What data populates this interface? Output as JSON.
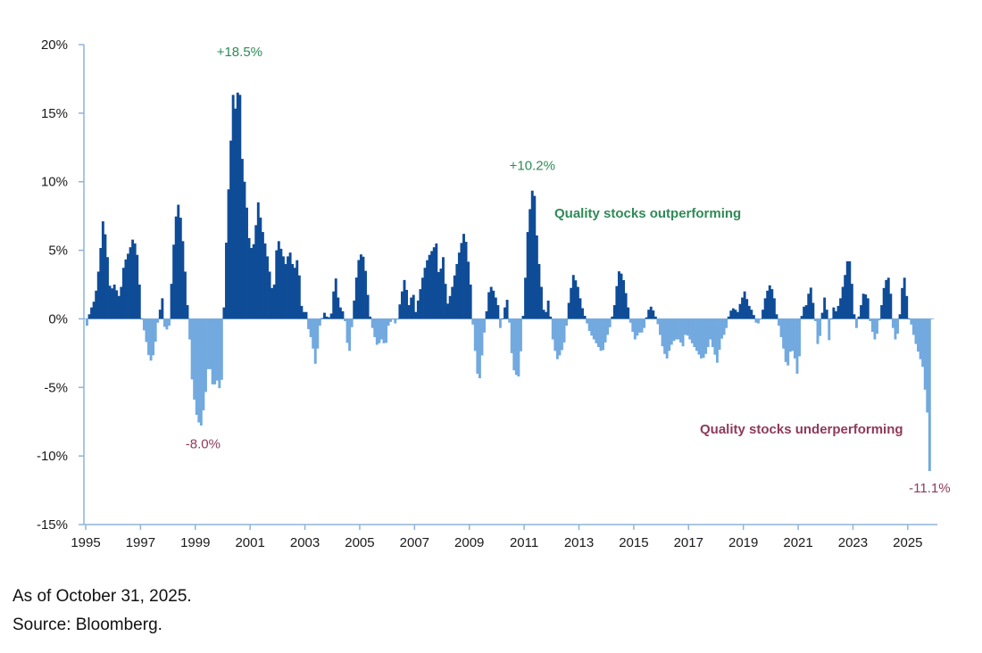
{
  "colors": {
    "positive": "#0f4c97",
    "negative": "#72a9df",
    "axis": "#8fb3d9",
    "pos_text": "#2f8a57",
    "neg_text": "#8e3a5a"
  },
  "chart_data": {
    "type": "bar",
    "title": "",
    "xlabel": "",
    "ylabel": "",
    "ylim": [
      -15,
      20
    ],
    "xlim": [
      1995,
      2025.95
    ],
    "y_ticks": [
      20,
      15,
      10,
      5,
      0,
      -5,
      -10,
      -15
    ],
    "y_tick_labels": [
      "20%",
      "15%",
      "10%",
      "5%",
      "0%",
      "-5%",
      "-10%",
      "-15%"
    ],
    "x_ticks": [
      1995,
      1997,
      1999,
      2001,
      2003,
      2005,
      2007,
      2009,
      2011,
      2013,
      2015,
      2017,
      2019,
      2021,
      2023,
      2025
    ],
    "x_tick_labels": [
      "1995",
      "1997",
      "1999",
      "2001",
      "2003",
      "2005",
      "2007",
      "2009",
      "2011",
      "2013",
      "2015",
      "2017",
      "2019",
      "2021",
      "2023",
      "2025"
    ],
    "series_start": "1995-01",
    "series_frequency": "monthly",
    "series_unit": "%",
    "keyframes": [
      [
        1995.0,
        -0.5
      ],
      [
        1995.1,
        0.5
      ],
      [
        1995.3,
        1.5
      ],
      [
        1995.45,
        4
      ],
      [
        1995.6,
        7.5
      ],
      [
        1995.75,
        4.5
      ],
      [
        1995.85,
        2
      ],
      [
        1996.0,
        2.5
      ],
      [
        1996.2,
        1.5
      ],
      [
        1996.35,
        4
      ],
      [
        1996.55,
        5
      ],
      [
        1996.7,
        6
      ],
      [
        1996.85,
        4.5
      ],
      [
        1997.0,
        0
      ],
      [
        1997.15,
        -1.5
      ],
      [
        1997.3,
        -3.2
      ],
      [
        1997.45,
        -2.5
      ],
      [
        1997.6,
        0
      ],
      [
        1997.75,
        1.5
      ],
      [
        1997.85,
        -1
      ],
      [
        1998.0,
        -0.5
      ],
      [
        1998.15,
        5
      ],
      [
        1998.3,
        8.7
      ],
      [
        1998.45,
        7
      ],
      [
        1998.6,
        3
      ],
      [
        1998.75,
        -1.5
      ],
      [
        1998.85,
        -5
      ],
      [
        1999.0,
        -7
      ],
      [
        1999.15,
        -8
      ],
      [
        1999.3,
        -6
      ],
      [
        1999.45,
        -3
      ],
      [
        1999.6,
        -5
      ],
      [
        1999.75,
        -4.5
      ],
      [
        1999.9,
        -5.5
      ],
      [
        2000.05,
        4
      ],
      [
        2000.2,
        11
      ],
      [
        2000.35,
        17
      ],
      [
        2000.45,
        14.5
      ],
      [
        2000.55,
        18.5
      ],
      [
        2000.65,
        12
      ],
      [
        2000.8,
        9
      ],
      [
        2000.95,
        5
      ],
      [
        2001.1,
        5.5
      ],
      [
        2001.25,
        8.5
      ],
      [
        2001.4,
        6.5
      ],
      [
        2001.55,
        5
      ],
      [
        2001.7,
        3
      ],
      [
        2001.8,
        1.5
      ],
      [
        2001.95,
        6
      ],
      [
        2002.1,
        5
      ],
      [
        2002.25,
        4
      ],
      [
        2002.4,
        5
      ],
      [
        2002.55,
        3.5
      ],
      [
        2002.7,
        4.5
      ],
      [
        2002.85,
        0.5
      ],
      [
        2003.0,
        0.5
      ],
      [
        2003.1,
        -1
      ],
      [
        2003.2,
        -1.5
      ],
      [
        2003.35,
        -3.5
      ],
      [
        2003.5,
        -0.5
      ],
      [
        2003.65,
        0.5
      ],
      [
        2003.8,
        0
      ],
      [
        2003.95,
        0.5
      ],
      [
        2004.05,
        3.5
      ],
      [
        2004.2,
        1
      ],
      [
        2004.35,
        0.5
      ],
      [
        2004.45,
        -0.5
      ],
      [
        2004.55,
        -3
      ],
      [
        2004.65,
        -1
      ],
      [
        2004.8,
        2.5
      ],
      [
        2004.95,
        4.8
      ],
      [
        2005.1,
        4.5
      ],
      [
        2005.2,
        3
      ],
      [
        2005.3,
        0.5
      ],
      [
        2005.45,
        -1
      ],
      [
        2005.6,
        -2
      ],
      [
        2005.75,
        -1.5
      ],
      [
        2005.9,
        -2
      ],
      [
        2006.0,
        -0.5
      ],
      [
        2006.15,
        0
      ],
      [
        2006.3,
        -0.5
      ],
      [
        2006.45,
        1.5
      ],
      [
        2006.6,
        3
      ],
      [
        2006.75,
        1
      ],
      [
        2006.9,
        2
      ],
      [
        2007.0,
        0.5
      ],
      [
        2007.15,
        2
      ],
      [
        2007.3,
        3.5
      ],
      [
        2007.45,
        4.5
      ],
      [
        2007.6,
        5
      ],
      [
        2007.75,
        5.5
      ],
      [
        2007.85,
        3
      ],
      [
        2008.0,
        4.5
      ],
      [
        2008.15,
        1
      ],
      [
        2008.3,
        2
      ],
      [
        2008.45,
        3.5
      ],
      [
        2008.6,
        5
      ],
      [
        2008.75,
        6.2
      ],
      [
        2008.85,
        5.5
      ],
      [
        2009.0,
        2.5
      ],
      [
        2009.1,
        -1
      ],
      [
        2009.2,
        -3
      ],
      [
        2009.3,
        -5
      ],
      [
        2009.45,
        -2
      ],
      [
        2009.55,
        0
      ],
      [
        2009.7,
        2.5
      ],
      [
        2009.85,
        2
      ],
      [
        2010.0,
        1
      ],
      [
        2010.1,
        -1
      ],
      [
        2010.2,
        0.5
      ],
      [
        2010.35,
        1.5
      ],
      [
        2010.5,
        -2.5
      ],
      [
        2010.6,
        -4
      ],
      [
        2010.75,
        -4.2
      ],
      [
        2010.85,
        -2
      ],
      [
        2011.0,
        3
      ],
      [
        2011.1,
        7
      ],
      [
        2011.2,
        8.5
      ],
      [
        2011.3,
        10.2
      ],
      [
        2011.4,
        6.5
      ],
      [
        2011.5,
        4
      ],
      [
        2011.6,
        2
      ],
      [
        2011.7,
        0
      ],
      [
        2011.85,
        1.5
      ],
      [
        2012.0,
        -1.5
      ],
      [
        2012.15,
        -3
      ],
      [
        2012.3,
        -2.5
      ],
      [
        2012.45,
        -1.5
      ],
      [
        2012.6,
        1.5
      ],
      [
        2012.75,
        3.2
      ],
      [
        2012.9,
        2.5
      ],
      [
        2013.05,
        1
      ],
      [
        2013.2,
        0
      ],
      [
        2013.35,
        -1
      ],
      [
        2013.5,
        -1.5
      ],
      [
        2013.65,
        -2
      ],
      [
        2013.8,
        -2.5
      ],
      [
        2013.95,
        -1.5
      ],
      [
        2014.1,
        -0.5
      ],
      [
        2014.25,
        1
      ],
      [
        2014.4,
        3.5
      ],
      [
        2014.55,
        3.2
      ],
      [
        2014.7,
        1.5
      ],
      [
        2014.85,
        -0.5
      ],
      [
        2015.0,
        -1.5
      ],
      [
        2015.15,
        -1
      ],
      [
        2015.3,
        -1
      ],
      [
        2015.4,
        0
      ],
      [
        2015.55,
        1
      ],
      [
        2015.7,
        0.5
      ],
      [
        2015.85,
        -0.5
      ],
      [
        2016.0,
        -2
      ],
      [
        2016.15,
        -3
      ],
      [
        2016.3,
        -2
      ],
      [
        2016.45,
        -1.5
      ],
      [
        2016.6,
        -1.5
      ],
      [
        2016.75,
        -2
      ],
      [
        2016.85,
        -1
      ],
      [
        2017.0,
        -1.5
      ],
      [
        2017.15,
        -2
      ],
      [
        2017.3,
        -2.5
      ],
      [
        2017.45,
        -3
      ],
      [
        2017.6,
        -2.5
      ],
      [
        2017.75,
        -1.5
      ],
      [
        2017.9,
        -2.5
      ],
      [
        2018.0,
        -3.2
      ],
      [
        2018.15,
        -1.5
      ],
      [
        2018.3,
        -1
      ],
      [
        2018.45,
        0.5
      ],
      [
        2018.6,
        0.8
      ],
      [
        2018.75,
        0.5
      ],
      [
        2018.85,
        1.2
      ],
      [
        2019.0,
        2
      ],
      [
        2019.15,
        1
      ],
      [
        2019.3,
        0.5
      ],
      [
        2019.45,
        -0.5
      ],
      [
        2019.6,
        0
      ],
      [
        2019.75,
        1.5
      ],
      [
        2019.9,
        2.5
      ],
      [
        2020.05,
        2
      ],
      [
        2020.15,
        0.5
      ],
      [
        2020.3,
        -1
      ],
      [
        2020.45,
        -2.5
      ],
      [
        2020.55,
        -3.8
      ],
      [
        2020.7,
        -2
      ],
      [
        2020.85,
        -3
      ],
      [
        2020.95,
        -4.5
      ],
      [
        2021.1,
        0.8
      ],
      [
        2021.25,
        1
      ],
      [
        2021.4,
        2.5
      ],
      [
        2021.55,
        0.5
      ],
      [
        2021.7,
        -2.5
      ],
      [
        2021.8,
        0
      ],
      [
        2021.95,
        2
      ],
      [
        2022.1,
        -2
      ],
      [
        2022.2,
        1
      ],
      [
        2022.35,
        0.5
      ],
      [
        2022.5,
        1.5
      ],
      [
        2022.65,
        3
      ],
      [
        2022.8,
        4.8
      ],
      [
        2022.9,
        3
      ],
      [
        2023.05,
        -1
      ],
      [
        2023.2,
        0.5
      ],
      [
        2023.35,
        2
      ],
      [
        2023.5,
        1.5
      ],
      [
        2023.6,
        -0.5
      ],
      [
        2023.75,
        -1.5
      ],
      [
        2023.85,
        -1
      ],
      [
        2024.0,
        1
      ],
      [
        2024.1,
        2.5
      ],
      [
        2024.2,
        3
      ],
      [
        2024.3,
        3
      ],
      [
        2024.4,
        -0.5
      ],
      [
        2024.5,
        -1.5
      ],
      [
        2024.6,
        -1
      ],
      [
        2024.7,
        1
      ],
      [
        2024.8,
        3.5
      ],
      [
        2024.9,
        2
      ],
      [
        2025.0,
        0
      ],
      [
        2025.1,
        -0.5
      ],
      [
        2025.2,
        -1.5
      ],
      [
        2025.35,
        -2.5
      ],
      [
        2025.5,
        -3.5
      ],
      [
        2025.6,
        -5.5
      ],
      [
        2025.7,
        -7.5
      ],
      [
        2025.8,
        -11.1
      ]
    ],
    "annotations": [
      {
        "id": "peak-2000",
        "label": "+18.5%",
        "x": 2000.55,
        "y": 18.5,
        "tone": "positive"
      },
      {
        "id": "peak-2011",
        "label": "+10.2%",
        "x": 2011.3,
        "y": 10.2,
        "tone": "positive"
      },
      {
        "id": "trough-1999",
        "label": "-8.0%",
        "x": 1999.15,
        "y": -8.0,
        "tone": "negative"
      },
      {
        "id": "trough-2025",
        "label": "-11.1%",
        "x": 2025.8,
        "y": -11.1,
        "tone": "negative"
      }
    ],
    "callouts": [
      {
        "id": "outperforming",
        "label": "Quality stocks outperforming",
        "tone": "positive"
      },
      {
        "id": "underperforming",
        "label": "Quality stocks underperforming",
        "tone": "negative"
      }
    ]
  },
  "footnotes": {
    "as_of": "As of October 31, 2025.",
    "source": "Source: Bloomberg."
  }
}
